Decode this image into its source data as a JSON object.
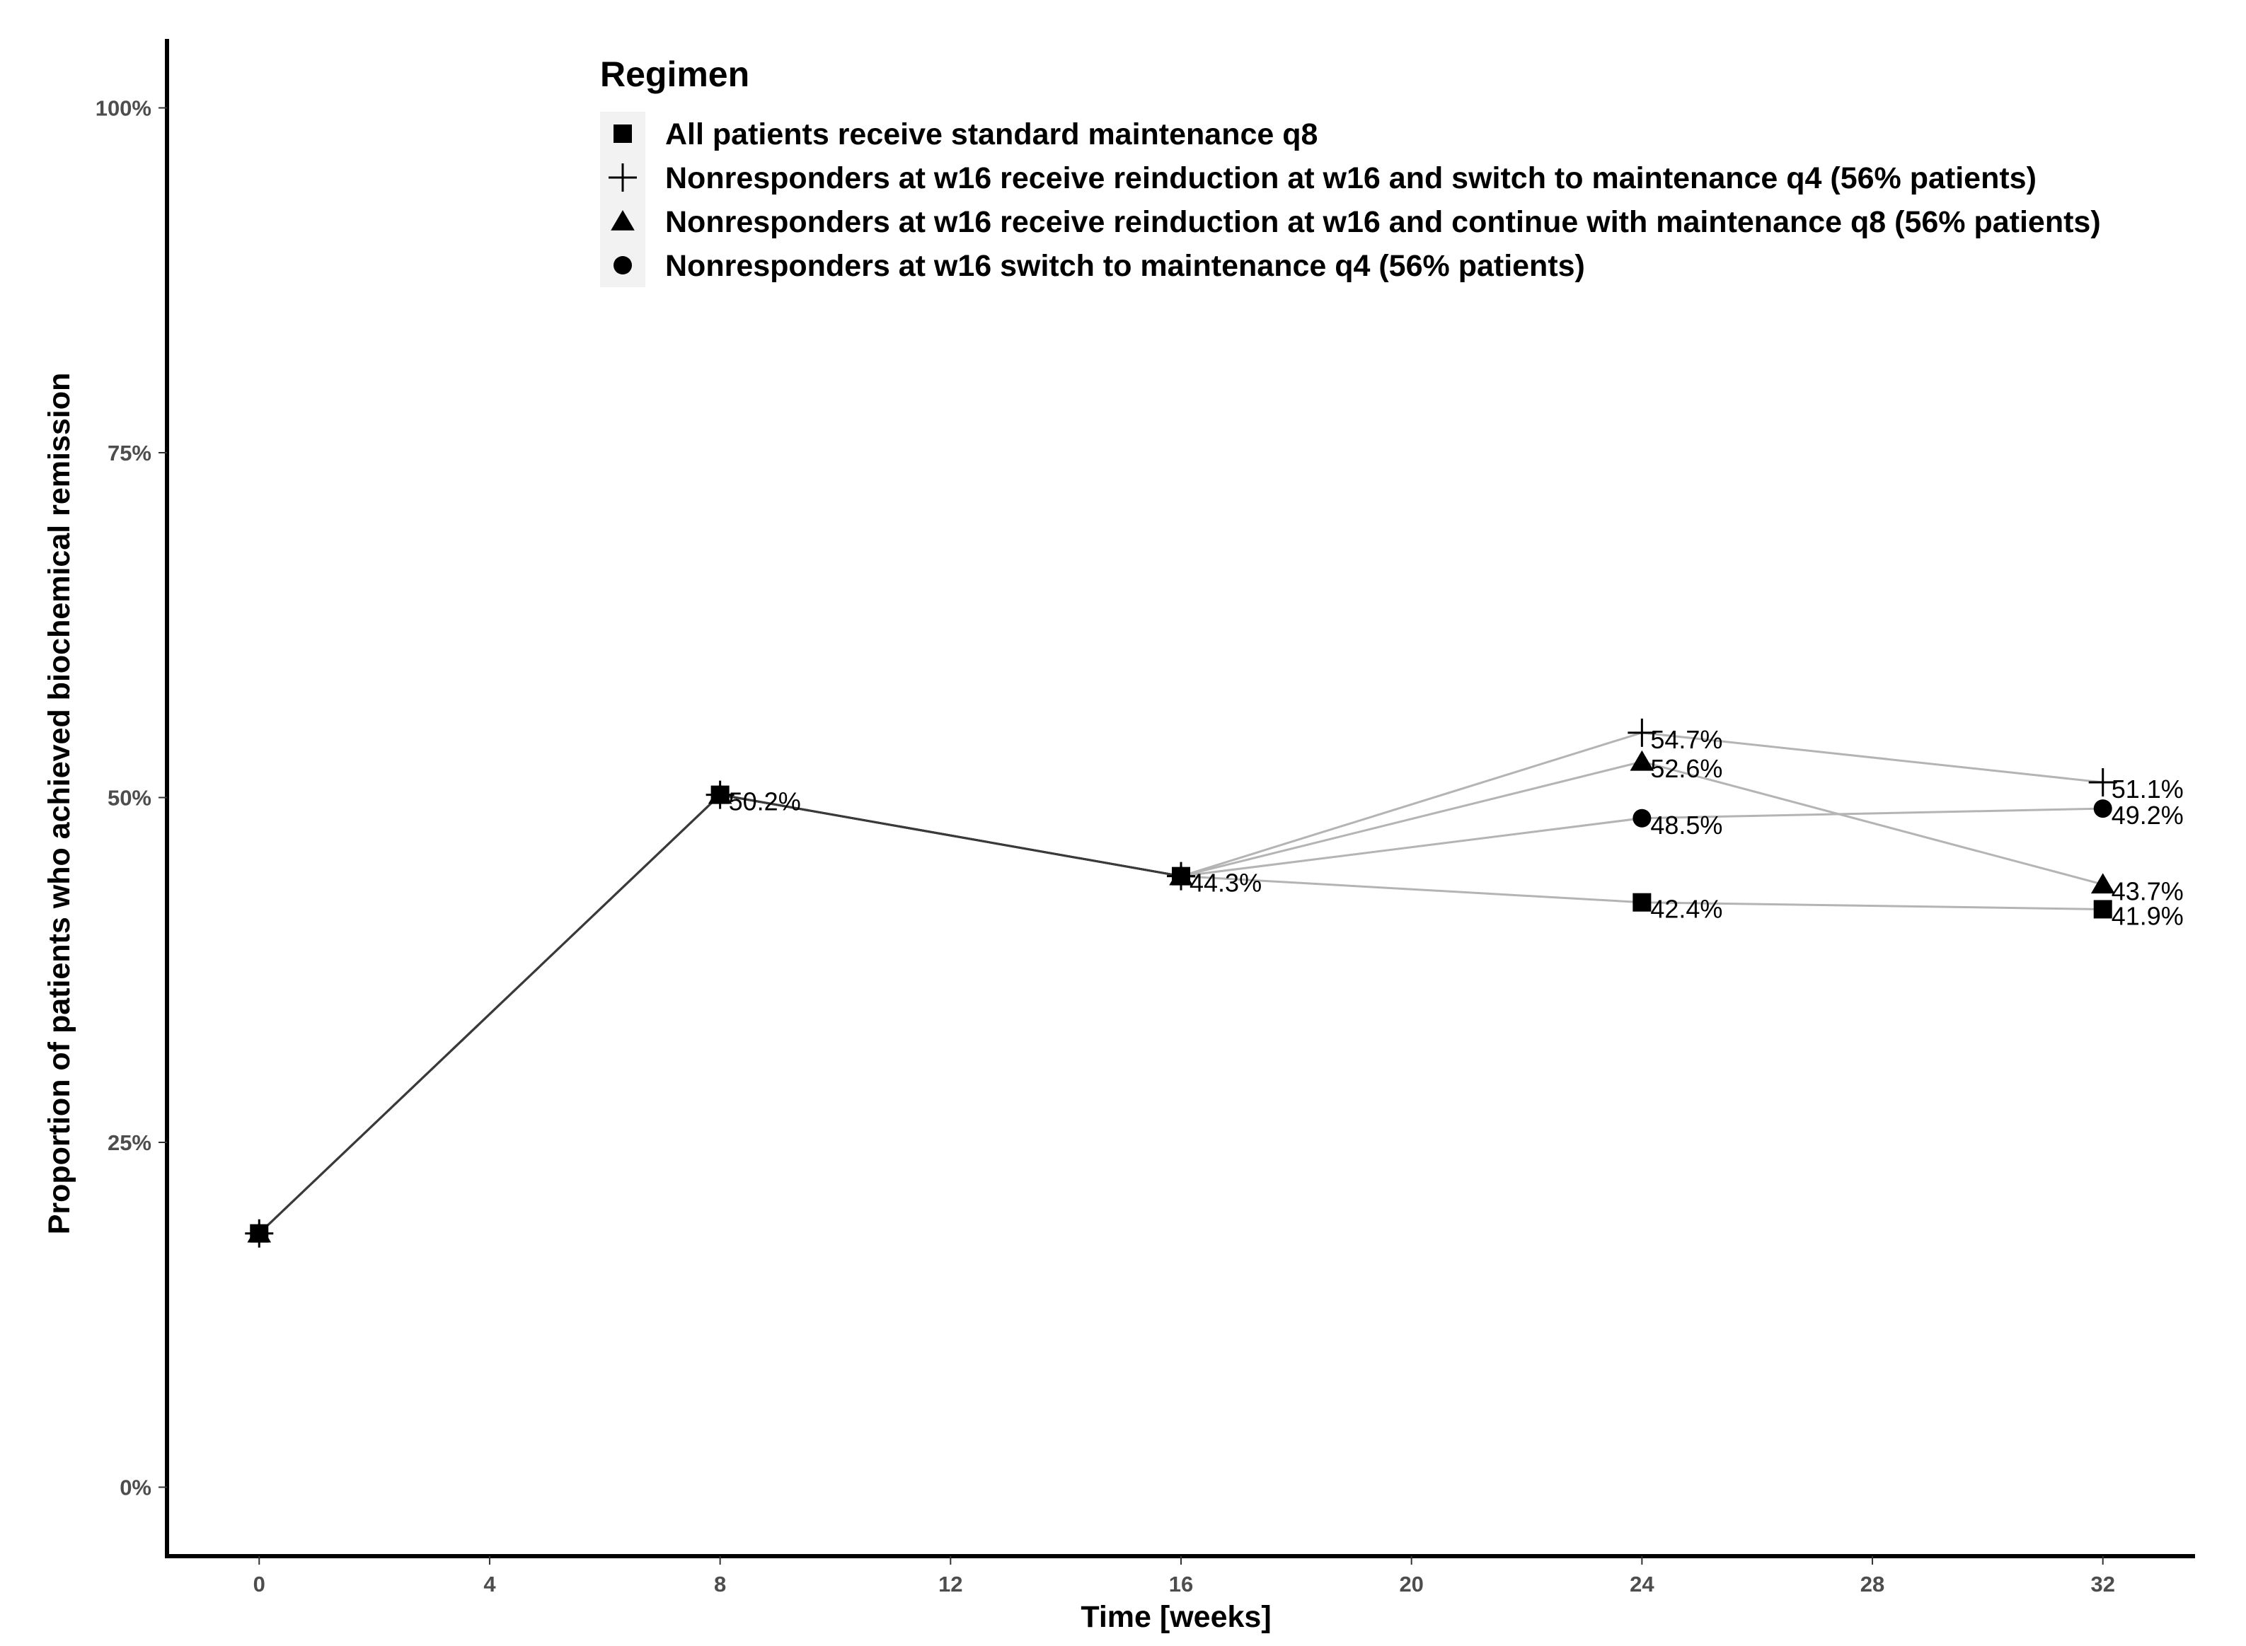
{
  "chart_data": {
    "type": "line",
    "title": "",
    "xlabel": "Time [weeks]",
    "ylabel": "Proportion of patients who achieved biochemical remission",
    "xlim": [
      -1.6,
      33.6
    ],
    "ylim": [
      -0.05,
      1.05
    ],
    "x_ticks": [
      0,
      4,
      8,
      12,
      16,
      20,
      24,
      28,
      32
    ],
    "y_ticks": [
      0,
      0.25,
      0.5,
      0.75,
      1.0
    ],
    "y_tick_labels": [
      "0%",
      "25%",
      "50%",
      "75%",
      "100%"
    ],
    "grid": false,
    "legend": {
      "title": "Regimen",
      "position": "top-center"
    },
    "series": [
      {
        "name": "All patients receive standard maintenance q8",
        "marker": "square",
        "x": [
          0,
          8,
          16,
          24,
          32
        ],
        "values": [
          0.184,
          0.502,
          0.443,
          0.424,
          0.419
        ],
        "labels": [
          "",
          "50.2%",
          "44.3%",
          "42.4%",
          "41.9%"
        ]
      },
      {
        "name": "Nonresponders at w16 receive reinduction at w16 and switch to maintenance q4 (56% patients)",
        "marker": "plus",
        "x": [
          0,
          8,
          16,
          24,
          32
        ],
        "values": [
          0.184,
          0.502,
          0.443,
          0.547,
          0.511
        ],
        "labels": [
          "",
          "",
          "",
          "54.7%",
          "51.1%"
        ]
      },
      {
        "name": "Nonresponders at w16 receive reinduction at w16 and continue with maintenance q8 (56% patients)",
        "marker": "triangle",
        "x": [
          0,
          8,
          16,
          24,
          32
        ],
        "values": [
          0.184,
          0.502,
          0.443,
          0.526,
          0.437
        ],
        "labels": [
          "",
          "",
          "",
          "52.6%",
          "43.7%"
        ]
      },
      {
        "name": "Nonresponders at w16 switch to maintenance q4 (56% patients)",
        "marker": "circle",
        "x": [
          0,
          8,
          16,
          24,
          32
        ],
        "values": [
          0.184,
          0.502,
          0.443,
          0.485,
          0.492
        ],
        "labels": [
          "",
          "",
          "",
          "48.5%",
          "49.2%"
        ]
      }
    ]
  },
  "colors": {
    "shared_line": "#3a3a3a",
    "branch_line": "#b4b4b4",
    "marker": "#000000",
    "axis": "#000000",
    "legend_key_bg": "#f2f2f2"
  }
}
